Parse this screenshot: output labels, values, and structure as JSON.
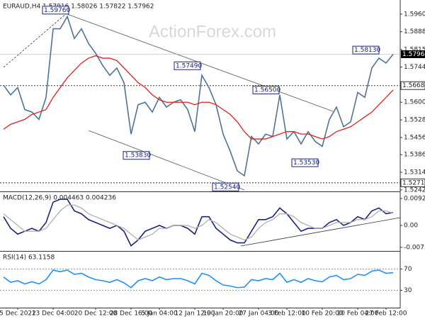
{
  "chart_data": [
    {
      "type": "price",
      "title": "EURAUD,H4 1.57916 1.58026 1.57822 1.57962",
      "watermark": "ActionForex.com",
      "categories": [
        null,
        null,
        "5 Dec 2022",
        null,
        null,
        null,
        null,
        "13 Dec 04:00",
        null,
        null,
        null,
        null,
        null,
        "20 Dec 12:00",
        null,
        null,
        null,
        null,
        "28 Dec 16:00",
        null,
        null,
        null,
        "5 Jan 04:00",
        null,
        null,
        null,
        null,
        "12 Jan 12:00",
        null,
        null,
        null,
        "19 Jan 20:00",
        null,
        null,
        null,
        null,
        "27 Jan 04:00",
        null,
        null,
        null,
        "3 Feb 12:00",
        null,
        null,
        null,
        null,
        "10 Feb 20:00",
        null,
        null,
        null,
        null,
        "20 Feb 04:00",
        null,
        null,
        null,
        "27 Feb 12:00",
        null
      ],
      "series": [
        {
          "name": "EURAUD",
          "color": "#4f7396",
          "values": [
            1.567,
            1.563,
            1.566,
            1.557,
            1.556,
            1.553,
            1.562,
            1.59,
            1.59,
            1.595,
            1.586,
            1.59,
            1.584,
            1.58,
            1.575,
            1.571,
            1.574,
            1.568,
            1.547,
            1.559,
            1.56,
            1.556,
            1.562,
            1.558,
            1.56,
            1.561,
            1.557,
            1.548,
            1.571,
            1.566,
            1.559,
            1.547,
            1.54,
            1.532,
            1.53,
            1.546,
            1.543,
            1.547,
            1.546,
            1.563,
            1.545,
            1.548,
            1.543,
            1.548,
            1.544,
            1.542,
            1.553,
            1.558,
            1.55,
            1.552,
            1.564,
            1.562,
            1.574,
            1.578,
            1.576,
            1.57962
          ]
        },
        {
          "name": "MA",
          "color": "#e02020",
          "values": [
            1.549,
            1.551,
            1.552,
            1.553,
            1.555,
            1.556,
            1.557,
            1.562,
            1.566,
            1.57,
            1.573,
            1.576,
            1.578,
            1.579,
            1.578,
            1.578,
            1.577,
            1.574,
            1.571,
            1.568,
            1.566,
            1.563,
            1.561,
            1.56,
            1.56,
            1.56,
            1.56,
            1.559,
            1.56,
            1.56,
            1.559,
            1.557,
            1.555,
            1.552,
            1.548,
            1.545,
            1.545,
            1.545,
            1.546,
            1.547,
            1.548,
            1.548,
            1.547,
            1.547,
            1.546,
            1.545,
            1.546,
            1.548,
            1.549,
            1.55,
            1.552,
            1.554,
            1.556,
            1.559,
            1.562,
            1.565
          ]
        }
      ],
      "ylim": [
        1.5236,
        1.6003
      ],
      "yticks": [
        {
          "value": 1.596,
          "label": "1.59600"
        },
        {
          "value": 1.5888,
          "label": "1.58880"
        },
        {
          "value": 1.5815,
          "label": "1.58150"
        },
        {
          "value": 1.5744,
          "label": "1.57440"
        },
        {
          "value": 1.56,
          "label": "1.56000"
        },
        {
          "value": 1.5528,
          "label": "1.55280"
        },
        {
          "value": 1.5456,
          "label": "1.54560"
        },
        {
          "value": 1.5386,
          "label": "1.53860"
        },
        {
          "value": 1.5314,
          "label": "1.53140"
        },
        {
          "value": 1.5242,
          "label": "1.52420"
        }
      ],
      "annotations": [
        {
          "value": 1.5976,
          "label": "1.59760"
        },
        {
          "value": 1.5749,
          "label": "1.57490"
        },
        {
          "value": 1.565,
          "label": "1.56500"
        },
        {
          "value": 1.5813,
          "label": "1.58130"
        },
        {
          "value": 1.5383,
          "label": "1.53830"
        },
        {
          "value": 1.5254,
          "label": "1.52540"
        },
        {
          "value": 1.5353,
          "label": "1.53530"
        }
      ],
      "levels": [
        {
          "value": 1.5668,
          "label": "1.56680"
        },
        {
          "value": 1.5271,
          "label": "1.52710"
        }
      ],
      "current": {
        "value": 1.57962,
        "label": "1.57962"
      }
    },
    {
      "type": "macd",
      "title": "MACD(12,26,9) 0.004463 0.004236",
      "series": [
        {
          "name": "MACD",
          "color": "#1a237e",
          "values": [
            0.003,
            -0.001,
            -0.003,
            -0.002,
            -0.001,
            -0.002,
            0.001,
            0.008,
            0.009,
            0.009,
            0.005,
            0.004,
            0.002,
            0.001,
            0,
            -0.001,
            0,
            -0.002,
            -0.007,
            -0.005,
            -0.002,
            -0.001,
            0,
            -0.001,
            0,
            0,
            -0.001,
            -0.003,
            0.003,
            0.003,
            -0.001,
            -0.003,
            -0.005,
            -0.006,
            -0.006,
            -0.002,
            0.002,
            0.002,
            0.003,
            0.006,
            0.004,
            0.001,
            -0.002,
            -0.001,
            -0.001,
            -0.001,
            0.001,
            0.002,
            0,
            0.001,
            0.003,
            0.002,
            0.005,
            0.006,
            0.004,
            0.004463
          ]
        },
        {
          "name": "Signal",
          "color": "#b0b0b0",
          "values": [
            0.004,
            0.002,
            0,
            -0.002,
            -0.002,
            -0.002,
            -0.001,
            0.002,
            0.005,
            0.007,
            0.007,
            0.006,
            0.004,
            0.003,
            0.002,
            0.001,
            0,
            -0.001,
            -0.003,
            -0.005,
            -0.004,
            -0.003,
            -0.001,
            -0.001,
            0,
            0,
            0,
            -0.001,
            0,
            0.002,
            0.001,
            -0.001,
            -0.003,
            -0.004,
            -0.005,
            -0.004,
            -0.001,
            0.001,
            0.002,
            0.004,
            0.004,
            0.003,
            0.001,
            0,
            -0.001,
            -0.001,
            0,
            0.001,
            0.001,
            0.001,
            0.002,
            0.002,
            0.003,
            0.005,
            0.005,
            0.004236
          ]
        }
      ],
      "ylim": [
        -0.00829,
        0.01121
      ],
      "yticks": [
        0.009263,
        {
          "value": 0,
          "label": "0.00"
        },
        -0.007517
      ]
    },
    {
      "type": "rsi",
      "title": "RSI(14) 63.1158",
      "series": [
        {
          "name": "RSI",
          "color": "#1e90ff",
          "values": [
            55,
            45,
            48,
            42,
            46,
            42,
            50,
            68,
            65,
            68,
            60,
            62,
            55,
            50,
            48,
            45,
            50,
            44,
            35,
            48,
            52,
            48,
            55,
            50,
            52,
            52,
            48,
            42,
            62,
            58,
            48,
            40,
            38,
            35,
            36,
            50,
            48,
            52,
            50,
            62,
            45,
            50,
            45,
            52,
            48,
            46,
            55,
            58,
            50,
            52,
            60,
            58,
            66,
            68,
            62,
            63.1158
          ]
        }
      ],
      "ylim": [
        0,
        100
      ],
      "yticks": [
        70,
        30
      ]
    }
  ]
}
